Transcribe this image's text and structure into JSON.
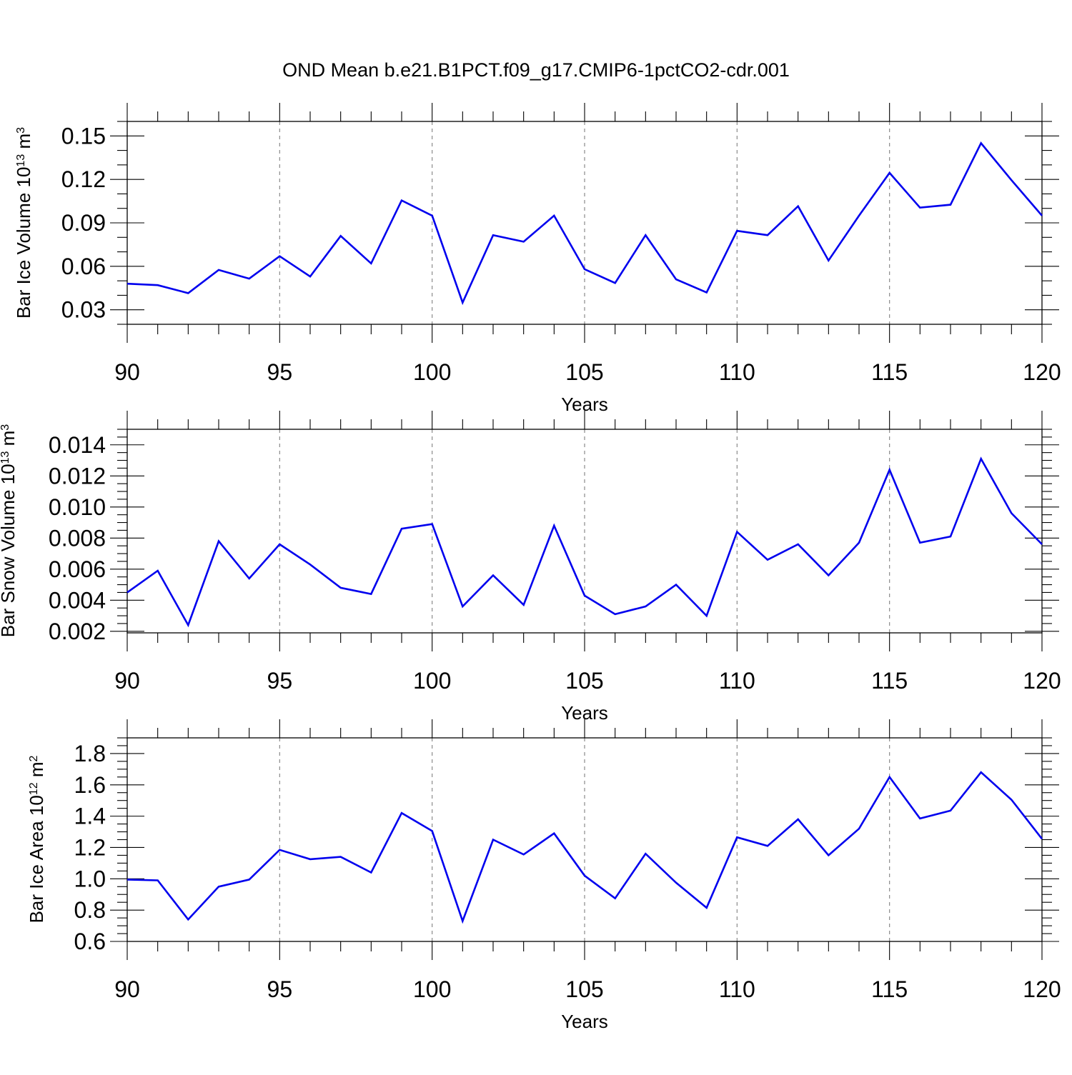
{
  "title": "OND Mean b.e21.B1PCT.f09_g17.CMIP6-1pctCO2-cdr.001",
  "colors": {
    "line": "#0000ee",
    "grid": "#8a8a8a"
  },
  "chart_data": [
    {
      "type": "line",
      "xlabel": "Years",
      "ylabel": {
        "main": "Bar Ice Volume 10",
        "sup": "13",
        "unit": " m",
        "unitsup": "3"
      },
      "xlim": [
        90,
        120
      ],
      "ylim": [
        0.02,
        0.16
      ],
      "x_major_ticks": [
        90,
        95,
        100,
        105,
        110,
        115,
        120
      ],
      "x_tick_labels": [
        "90",
        "95",
        "100",
        "105",
        "110",
        "115",
        "120"
      ],
      "y_major_ticks": [
        0.03,
        0.06,
        0.09,
        0.12,
        0.15
      ],
      "y_tick_labels": [
        "0.03",
        "0.06",
        "0.09",
        "0.12",
        "0.15"
      ],
      "y_minor_step": 0.01,
      "grid": "x-dashed",
      "x": [
        90,
        91,
        92,
        93,
        94,
        95,
        96,
        97,
        98,
        99,
        100,
        101,
        102,
        103,
        104,
        105,
        106,
        107,
        108,
        109,
        110,
        111,
        112,
        113,
        114,
        115,
        116,
        117,
        118,
        119,
        120
      ],
      "values": [
        0.048,
        0.047,
        0.0415,
        0.0575,
        0.0515,
        0.067,
        0.053,
        0.081,
        0.062,
        0.1055,
        0.095,
        0.035,
        0.0815,
        0.077,
        0.095,
        0.058,
        0.0485,
        0.0815,
        0.051,
        0.042,
        0.0845,
        0.0815,
        0.1015,
        0.064,
        0.095,
        0.1245,
        0.1005,
        0.1025,
        0.145,
        0.1195,
        0.095
      ]
    },
    {
      "type": "line",
      "xlabel": "Years",
      "ylabel": {
        "main": "Bar Snow Volume 10",
        "sup": "13",
        "unit": " m",
        "unitsup": "3"
      },
      "xlim": [
        90,
        120
      ],
      "ylim": [
        0.0019,
        0.015
      ],
      "x_major_ticks": [
        90,
        95,
        100,
        105,
        110,
        115,
        120
      ],
      "x_tick_labels": [
        "90",
        "95",
        "100",
        "105",
        "110",
        "115",
        "120"
      ],
      "y_major_ticks": [
        0.002,
        0.004,
        0.006,
        0.008,
        0.01,
        0.012,
        0.014
      ],
      "y_tick_labels": [
        "0.002",
        "0.004",
        "0.006",
        "0.008",
        "0.010",
        "0.012",
        "0.014"
      ],
      "y_minor_step": 0.0005,
      "grid": "x-dashed",
      "x": [
        90,
        91,
        92,
        93,
        94,
        95,
        96,
        97,
        98,
        99,
        100,
        101,
        102,
        103,
        104,
        105,
        106,
        107,
        108,
        109,
        110,
        111,
        112,
        113,
        114,
        115,
        116,
        117,
        118,
        119,
        120
      ],
      "values": [
        0.0045,
        0.0059,
        0.0024,
        0.0078,
        0.0054,
        0.0076,
        0.0063,
        0.0048,
        0.0044,
        0.0086,
        0.0089,
        0.0036,
        0.0056,
        0.0037,
        0.0088,
        0.0043,
        0.0031,
        0.0036,
        0.005,
        0.003,
        0.0084,
        0.0066,
        0.0076,
        0.0056,
        0.0077,
        0.0124,
        0.0077,
        0.0081,
        0.0131,
        0.0096,
        0.0076
      ]
    },
    {
      "type": "line",
      "xlabel": "Years",
      "ylabel": {
        "main": "Bar Ice Area 10",
        "sup": "12",
        "unit": " m",
        "unitsup": "2"
      },
      "xlim": [
        90,
        120
      ],
      "ylim": [
        0.6,
        1.9
      ],
      "x_major_ticks": [
        90,
        95,
        100,
        105,
        110,
        115,
        120
      ],
      "x_tick_labels": [
        "90",
        "95",
        "100",
        "105",
        "110",
        "115",
        "120"
      ],
      "y_major_ticks": [
        0.6,
        0.8,
        1.0,
        1.2,
        1.4,
        1.6,
        1.8
      ],
      "y_tick_labels": [
        "0.6",
        "0.8",
        "1.0",
        "1.2",
        "1.4",
        "1.6",
        "1.8"
      ],
      "y_minor_step": 0.05,
      "grid": "x-dashed",
      "x": [
        90,
        91,
        92,
        93,
        94,
        95,
        96,
        97,
        98,
        99,
        100,
        101,
        102,
        103,
        104,
        105,
        106,
        107,
        108,
        109,
        110,
        111,
        112,
        113,
        114,
        115,
        116,
        117,
        118,
        119,
        120
      ],
      "values": [
        0.995,
        0.99,
        0.74,
        0.95,
        0.995,
        1.185,
        1.125,
        1.14,
        1.04,
        1.42,
        1.305,
        0.73,
        1.25,
        1.155,
        1.29,
        1.02,
        0.875,
        1.16,
        0.975,
        0.815,
        1.265,
        1.21,
        1.38,
        1.15,
        1.32,
        1.65,
        1.385,
        1.435,
        1.68,
        1.505,
        1.255
      ]
    }
  ]
}
